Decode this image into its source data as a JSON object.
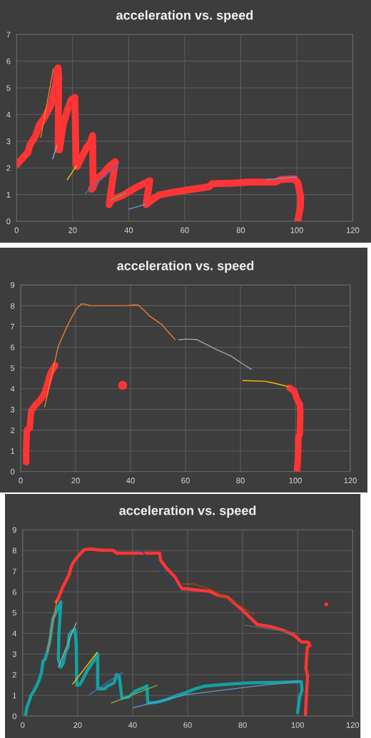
{
  "chart_data": [
    {
      "type": "line",
      "title": "acceleration vs. speed",
      "xlim": [
        0,
        120
      ],
      "ylim": [
        0,
        7
      ],
      "xticks": [
        0,
        20,
        40,
        60,
        80,
        100,
        120
      ],
      "yticks": [
        0,
        1,
        2,
        3,
        4,
        5,
        6,
        7
      ],
      "grid": true,
      "series": [
        {
          "color": "#ff3535",
          "x": [
            0.2,
            2.5,
            4.1,
            4.7,
            6.8,
            8.1,
            9.7,
            11.0,
            12.3,
            13.1,
            14.0,
            14.6,
            14.8,
            15.0,
            14.8,
            15.3,
            16.5,
            18.2,
            19.5,
            20.8,
            21.2,
            21.6,
            23.3,
            25.0,
            26.3,
            27.1,
            27.3,
            26.7,
            28.8,
            30.9,
            33.0,
            35.2,
            33.0,
            33.9,
            38.1,
            42.4,
            45.8,
            47.5,
            46.2,
            48.3,
            50.8,
            55.1,
            60.2,
            68.7,
            69.9,
            77.1,
            83.1,
            92.4,
            94.1,
            99.2,
            100.4,
            101.4,
            101.3,
            100.4
          ],
          "values": [
            2.14,
            2.41,
            2.59,
            2.85,
            3.21,
            3.61,
            3.84,
            4.1,
            4.37,
            4.73,
            5.17,
            5.71,
            5.75,
            5.35,
            2.68,
            2.68,
            3.57,
            4.19,
            4.55,
            4.64,
            2.14,
            2.05,
            2.41,
            2.77,
            2.94,
            3.21,
            1.25,
            1.2,
            1.61,
            1.78,
            2.05,
            2.23,
            0.62,
            0.8,
            0.98,
            1.25,
            1.43,
            1.52,
            0.62,
            0.8,
            0.98,
            1.07,
            1.16,
            1.29,
            1.41,
            1.43,
            1.47,
            1.47,
            1.56,
            1.59,
            1.43,
            0.89,
            0.54,
            0.04
          ]
        },
        {
          "color": "#ed7d31",
          "x": [
            8.6,
            13.1
          ],
          "values": [
            3.14,
            5.71
          ]
        },
        {
          "color": "#a5a5a5",
          "x": [
            12.9,
            14.4
          ],
          "values": [
            2.34,
            2.85
          ]
        },
        {
          "color": "#ffc000",
          "x": [
            18.1,
            21.4
          ],
          "values": [
            1.56,
            2.08
          ]
        },
        {
          "color": "#4472c4",
          "x": [
            24.4,
            36.4
          ],
          "values": [
            1.03,
            2.16
          ]
        },
        {
          "color": "#70ad47",
          "x": [
            33.8,
            39.0
          ],
          "values": [
            0.8,
            1.06
          ]
        },
        {
          "color": "#5b9bd5",
          "x": [
            40,
            46,
            70,
            89,
            100
          ],
          "values": [
            0.45,
            0.64,
            null,
            1.56,
            1.65
          ]
        }
      ]
    },
    {
      "type": "line",
      "title": "acceleration vs. speed",
      "xlim": [
        0,
        120
      ],
      "ylim": [
        0,
        9
      ],
      "xticks": [
        0,
        20,
        40,
        60,
        80,
        100,
        120
      ],
      "yticks": [
        0,
        1,
        2,
        3,
        4,
        5,
        6,
        7,
        8,
        9
      ],
      "grid": true,
      "series": [
        {
          "color": "#ff3535",
          "x": [
            2.0,
            2.0,
            2.2,
            2.4,
            3.3,
            3.6,
            3.9,
            4.6,
            5.5,
            6.8,
            8.1,
            8.9,
            9.4,
            10.2,
            10.8,
            11.5,
            12.6,
            55,
            97.9,
            99.6,
            100.5,
            101.6,
            101.8,
            101.6,
            101.1,
            100.9,
            100.6
          ],
          "values": [
            0.45,
            1.0,
            1.92,
            2.03,
            2.09,
            2.61,
            2.95,
            3.07,
            3.24,
            3.41,
            3.64,
            3.87,
            4.1,
            4.44,
            4.73,
            4.9,
            5.13,
            null,
            4.04,
            3.87,
            3.52,
            3.24,
            2.84,
            1.8,
            1.69,
            0.54,
            0.08
          ]
        },
        {
          "color": "#ed7d31",
          "x": [
            8.7,
            9.8,
            12.4,
            13.7,
            15.4,
            17.6,
            20.2,
            22.0,
            23.3,
            25.4,
            31.5,
            38.4,
            41.0,
            42.8,
            44.5,
            47.1,
            51.5,
            54.1,
            56.2
          ],
          "values": [
            3.12,
            3.75,
            5.3,
            6.05,
            6.57,
            7.2,
            7.83,
            8.08,
            8.08,
            8.0,
            8.0,
            8.0,
            8.04,
            8.03,
            7.83,
            7.49,
            7.08,
            6.68,
            6.37
          ]
        },
        {
          "color": "#a5a5a5",
          "x": [
            57.6,
            60.1,
            64.0,
            67.1,
            71.4,
            76.6,
            80.9,
            84.0
          ],
          "values": [
            6.36,
            6.39,
            6.37,
            6.17,
            5.88,
            5.57,
            5.19,
            4.93
          ]
        },
        {
          "color": "#ffc000",
          "x": [
            80.9,
            88.8,
            92.2,
            97.4
          ],
          "values": [
            4.39,
            4.36,
            4.27,
            4.1
          ]
        },
        {
          "type": "scatter",
          "marker": "circle",
          "color": "#ff3535",
          "x": [
            37.1
          ],
          "values": [
            4.16
          ]
        }
      ]
    },
    {
      "type": "line",
      "title": "acceleration vs. speed",
      "xlim": [
        0,
        120
      ],
      "ylim": [
        0,
        9
      ],
      "xticks": [
        0,
        20,
        40,
        60,
        80,
        100,
        120
      ],
      "yticks": [
        0,
        1,
        2,
        3,
        4,
        5,
        6,
        7,
        8,
        9
      ],
      "grid": true,
      "series": [
        {
          "color": "#ff3535",
          "x": [
            12.1,
            13.0,
            14.3,
            15.6,
            16.9,
            17.7,
            19.0,
            20.8,
            22.5,
            24.7,
            29.0,
            32.9,
            34.2,
            39.4,
            49.8,
            50.2,
            52.4,
            55.4,
            57.1,
            58.0,
            59.3,
            68.0,
            70.5,
            74.4,
            77.5,
            80.9,
            85.3,
            90.5,
            94.8,
            98.7,
            101.3,
            103.9,
            104.5,
            103.5,
            103.0,
            103.6,
            103.3,
            102.8
          ],
          "values": [
            5.52,
            5.69,
            6.15,
            6.49,
            6.84,
            7.24,
            7.53,
            7.82,
            8.05,
            8.07,
            8.01,
            8.01,
            7.87,
            7.87,
            7.87,
            7.53,
            7.13,
            6.72,
            6.32,
            6.15,
            6.15,
            6.03,
            5.86,
            5.75,
            5.4,
            5.0,
            4.43,
            4.31,
            4.14,
            3.91,
            3.59,
            3.56,
            3.41,
            3.33,
            2.3,
            1.95,
            1.26,
            0.0
          ]
        },
        {
          "color": "#12a3a3",
          "x": [
            1.1,
            1.5,
            2.3,
            3.0,
            4.3,
            5.2,
            6.1,
            6.9,
            7.4,
            8.2,
            9.1,
            10.0,
            10.4,
            11.0,
            12.1,
            13.0,
            13.9,
            13.2,
            13.0,
            13.9,
            14.7,
            15.6,
            16.5,
            16.9,
            17.7,
            19.0,
            19.5,
            19.7,
            20.8,
            22.1,
            23.4,
            25.1,
            26.4,
            27.3,
            27.3,
            29.9,
            30.7,
            33.3,
            34.2,
            35.1,
            36.1,
            38.5,
            41.1,
            42.9,
            44.6,
            45.2,
            45.5,
            48.9,
            52.4,
            55.8,
            59.3,
            62.8,
            65.8,
            72.3,
            82.7,
            93.9,
            101.3,
            101.6,
            100.7,
            100.0
          ],
          "values": [
            0.06,
            0.4,
            0.69,
            0.98,
            1.26,
            1.49,
            1.78,
            2.13,
            2.64,
            2.76,
            3.16,
            3.68,
            4.14,
            4.71,
            5.0,
            5.29,
            5.52,
            4.02,
            2.76,
            2.36,
            2.53,
            3.1,
            3.33,
            3.91,
            4.08,
            4.2,
            3.45,
            1.49,
            1.52,
            1.84,
            2.18,
            2.53,
            2.76,
            2.99,
            1.32,
            1.32,
            1.44,
            1.61,
            2.01,
            1.95,
            0.86,
            0.92,
            1.21,
            1.32,
            1.4,
            1.47,
            0.63,
            0.67,
            0.8,
            0.98,
            1.13,
            1.32,
            1.44,
            1.52,
            1.61,
            1.63,
            1.67,
            1.26,
            0.92,
            0.17
          ]
        },
        {
          "color": "#ed7d31",
          "x": [
            9.0,
            12.5
          ],
          "values": [
            3.1,
            5.6
          ]
        },
        {
          "color": "#a5a5a5",
          "x": [
            13.0,
            19.5
          ],
          "values": [
            2.36,
            4.51
          ]
        },
        {
          "color": "#ffc000",
          "x": [
            18.2,
            27.1
          ],
          "values": [
            1.55,
            3.08
          ]
        },
        {
          "color": "#4472c4",
          "x": [
            24.2,
            36.5
          ],
          "values": [
            1.03,
            2.13
          ]
        },
        {
          "color": "#70ad47",
          "x": [
            32.3,
            48.9
          ],
          "values": [
            0.63,
            1.49
          ]
        },
        {
          "color": "#5b9bd5",
          "x": [
            40.1,
            59.3,
            82.7,
            100.0
          ],
          "values": [
            0.4,
            1.03,
            1.42,
            1.67
          ]
        },
        {
          "color": "#264478",
          "x": [
            40.3,
            43.0,
            47.2,
            52.4,
            56.7
          ],
          "values": [
            8.05,
            8.05,
            7.36,
            6.84,
            6.23
          ]
        },
        {
          "color": "#9e480e",
          "x": [
            58.4,
            62.3,
            67.9,
            76.6,
            84.0
          ],
          "values": [
            6.38,
            6.38,
            6.15,
            5.52,
            4.92
          ]
        },
        {
          "color": "#636363",
          "x": [
            80.9,
            99.1
          ],
          "values": [
            4.39,
            4.02
          ]
        },
        {
          "type": "scatter",
          "marker": "circle",
          "color": "#ff3535",
          "x": [
            110.4
          ],
          "values": [
            5.4
          ]
        }
      ]
    }
  ]
}
